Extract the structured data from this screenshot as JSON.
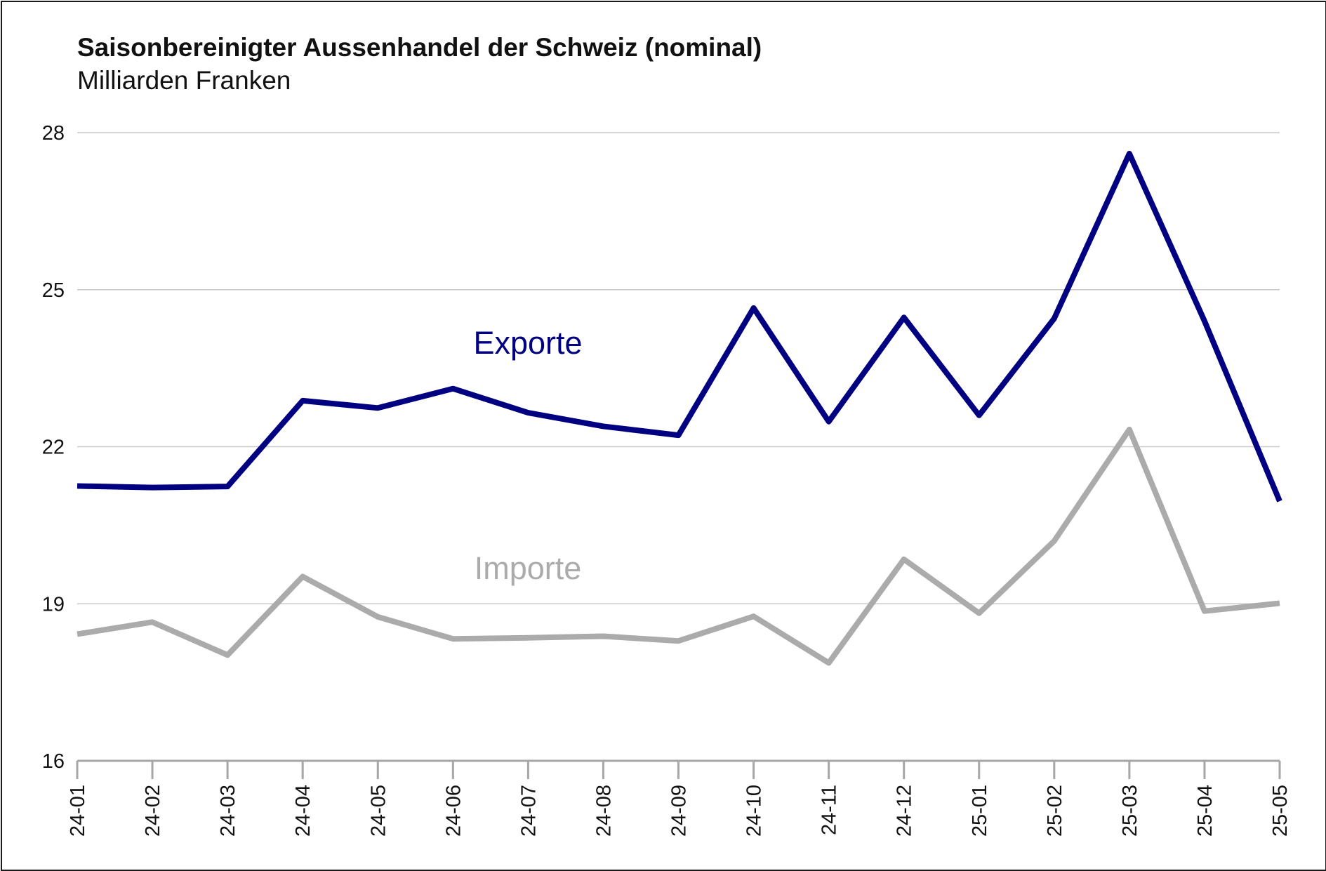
{
  "chart_data": {
    "type": "line",
    "title": "Saisonbereinigter Aussenhandel der Schweiz (nominal)",
    "subtitle": "Milliarden Franken",
    "xlabel": "",
    "ylabel": "",
    "categories": [
      "24-01",
      "24-02",
      "24-03",
      "24-04",
      "24-05",
      "24-06",
      "24-07",
      "24-08",
      "24-09",
      "24-10",
      "24-11",
      "24-12",
      "25-01",
      "25-02",
      "25-03",
      "25-04",
      "25-05"
    ],
    "ylim": [
      16,
      28
    ],
    "yticks": [
      16,
      19,
      22,
      25,
      28
    ],
    "grid": true,
    "legend": "none",
    "series": [
      {
        "name": "Exporte",
        "color": "#000080",
        "values": [
          21.25,
          21.22,
          21.24,
          22.88,
          22.74,
          23.11,
          22.65,
          22.39,
          22.22,
          24.65,
          22.48,
          24.47,
          22.6,
          24.45,
          27.6,
          24.4,
          20.96
        ]
      },
      {
        "name": "Importe",
        "color": "#ababab",
        "values": [
          18.42,
          18.65,
          18.02,
          19.52,
          18.75,
          18.33,
          18.35,
          18.38,
          18.29,
          18.76,
          17.87,
          19.85,
          18.82,
          20.2,
          22.33,
          18.86,
          19.01
        ]
      }
    ]
  }
}
